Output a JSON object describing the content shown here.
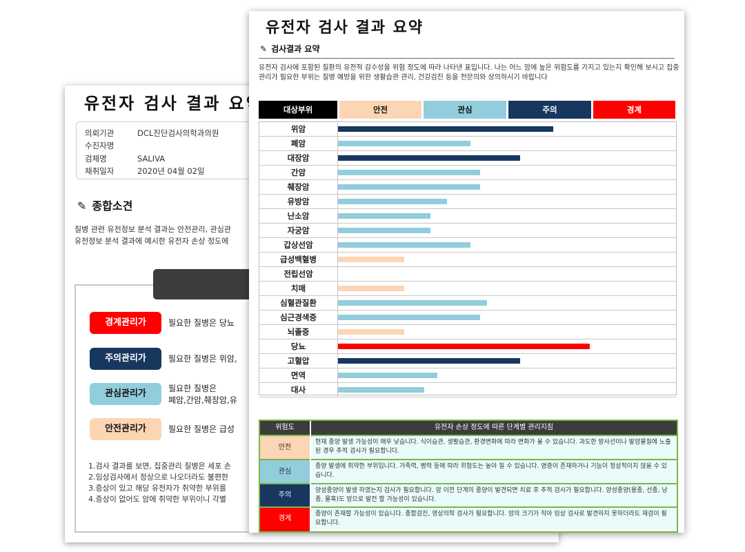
{
  "back": {
    "title": "유전자 검사 결과 요약",
    "info": [
      {
        "key": "의뢰기관",
        "value": "DCL진단검사의학과의원"
      },
      {
        "key": "수진자명",
        "value": ""
      },
      {
        "key": "검체명",
        "value": "SALIVA"
      },
      {
        "key": "채취일자",
        "value": "2020년 04월 02일"
      }
    ],
    "section_title": "종합소견",
    "description": [
      "질병 관련 유전정보 분석 결과는 안전관리, 관심관",
      "유전정보 분석 결과에 예시한 유전자 손상 정도에"
    ],
    "levels": [
      {
        "label": "경계관리가",
        "text": "필요한 질병은 당뇨",
        "bg": "#ff0000",
        "fg": "#ffffff"
      },
      {
        "label": "주의관리가",
        "text": "필요한 질병은 위암,",
        "bg": "#17375e",
        "fg": "#ffffff"
      },
      {
        "label": "관심관리가",
        "text": "필요한 질병은\n폐암,간암,췌장암,유",
        "bg": "#92cddc",
        "fg": "#111111"
      },
      {
        "label": "안전관리가",
        "text": "필요한 질병은 급성",
        "bg": "#fcd5b4",
        "fg": "#111111"
      }
    ],
    "notes": [
      "1.검사 결과를 보면, 집중관리 질병은 세포 손",
      "2.임상검사에서 정상으로 나오더라도 불편한",
      "3.증상이 있고 해당 유전자가 취약한 부위를",
      "4.증상이 없어도 암에 취약한 부위이니 각별"
    ]
  },
  "front": {
    "title": "유전자 검사 결과 요약",
    "subtitle": "검사결과 요약",
    "description": "유전자 검사에 포함된 질환의 유전적 감수성을 위험 정도에 따라 나타낸 표입니다. 나는 어느 암에 높은 위험도를 가지고 있는지 확인해 보시고 집중관리가 필요한 부위는 질병 예방을 위한 생활습관 관리, 건강검진 등을 전문의와 상의하시기 바랍니다",
    "legend": [
      {
        "label": "대상부위",
        "bg": "#000000",
        "fg": "#ffffff"
      },
      {
        "label": "안전",
        "bg": "#fcd5b4",
        "fg": "#111111"
      },
      {
        "label": "관심",
        "bg": "#92cddc",
        "fg": "#111111"
      },
      {
        "label": "주의",
        "bg": "#17375e",
        "fg": "#ffffff"
      },
      {
        "label": "경계",
        "bg": "#ff0000",
        "fg": "#ffffff"
      }
    ],
    "guide": {
      "header_level": "위험도",
      "header_text": "유전자 손상 정도에 따른 단계별 관리지침",
      "rows": [
        {
          "level": "안전",
          "bg": "#fcd5b4",
          "fg": "#333333",
          "text": "현재 종양 발생 가능성이 매우 낮습니다. 식이습관, 생활습관, 환경변화에 따라 변화가 올 수 있습니다. 과도한 방사선이나 발암물질에 노출된 경우 추적 검사가 필요합니다."
        },
        {
          "level": "관심",
          "bg": "#92cddc",
          "fg": "#333333",
          "text": "종양 발생에 취약한 부위입니다. 가족력, 병력 등에 따라 위험도는 높아 질 수 있습니다. 염증이 존재하거나 기능이 정상적이지 않을 수 있습니다."
        },
        {
          "level": "주의",
          "bg": "#17375e",
          "fg": "#ffffff",
          "text": "양성종양이 발생 하였는지 검사가 필요합니다. 암 이전 단계의 종양이 발견되면 치료 후 추적 검사가 필요합니다. 양성종양(용종, 선종, 낭종, 물혹)도 암으로 발전 할 가능성이 있습니다."
        },
        {
          "level": "경계",
          "bg": "#ff0000",
          "fg": "#ffffff",
          "text": "종양이 존재할 가능성이 있습니다. 종합검진, 영상의학 검사가 필요합니다. 암의 크기가 작아 임상 검사로 발견하지 못하더라도 재검이 필요합니다."
        }
      ]
    }
  },
  "chart_data": {
    "type": "bar",
    "orientation": "horizontal",
    "categories": [
      "위암",
      "폐암",
      "대장암",
      "간암",
      "췌장암",
      "유방암",
      "난소암",
      "자궁암",
      "갑상선암",
      "급성백혈병",
      "전립선암",
      "치매",
      "심혈관질환",
      "심근경색증",
      "뇌졸중",
      "당뇨",
      "고혈압",
      "면역",
      "대사"
    ],
    "values": [
      65,
      40,
      55,
      43,
      43,
      33,
      28,
      28,
      40,
      20,
      0,
      20,
      45,
      43,
      20,
      76,
      55,
      30,
      26
    ],
    "levels": [
      "주의",
      "관심",
      "주의",
      "관심",
      "관심",
      "관심",
      "관심",
      "관심",
      "관심",
      "안전",
      "안전",
      "안전",
      "관심",
      "관심",
      "안전",
      "경계",
      "주의",
      "관심",
      "관심"
    ],
    "xlim": [
      0,
      100
    ],
    "level_colors": {
      "안전": "#fcd5b4",
      "관심": "#92cddc",
      "주의": "#17375e",
      "경계": "#ff0000"
    }
  }
}
